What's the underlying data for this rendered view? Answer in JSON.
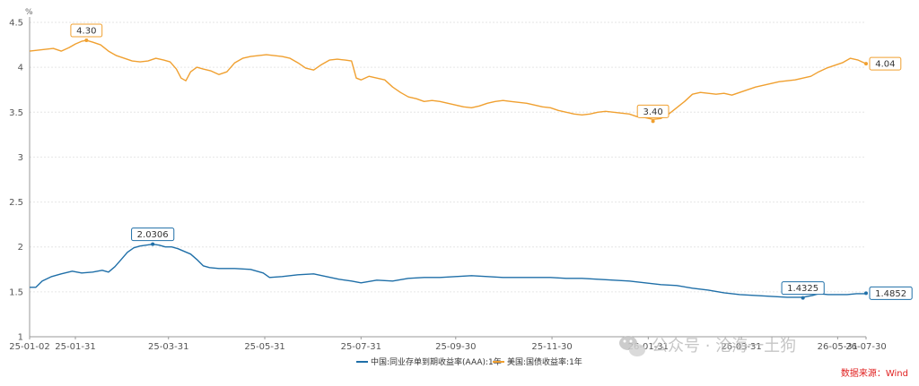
{
  "chart_data": {
    "type": "line",
    "title": "",
    "xlabel": "",
    "ylabel": "%",
    "ylim": [
      1,
      4.5
    ],
    "y_ticks": [
      "1",
      "1.5",
      "2",
      "2.5",
      "3",
      "3.5",
      "4",
      "4.5"
    ],
    "x_ticks": [
      "25-01-02",
      "25-01-31",
      "25-03-31",
      "25-05-31",
      "25-07-31",
      "25-09-30",
      "25-11-30",
      "26-01-31",
      "26-03-31",
      "26-05-31",
      "26-07-30"
    ],
    "grid": true,
    "legend_position": "bottom",
    "series": [
      {
        "name": "中国:同业存单到期收益率(AAA):1年",
        "color": "#1f6fa8",
        "values": [
          [
            0,
            1.55
          ],
          [
            4,
            1.55
          ],
          [
            8,
            1.62
          ],
          [
            14,
            1.67
          ],
          [
            20,
            1.7
          ],
          [
            27,
            1.73
          ],
          [
            33,
            1.71
          ],
          [
            40,
            1.72
          ],
          [
            46,
            1.74
          ],
          [
            50,
            1.72
          ],
          [
            54,
            1.78
          ],
          [
            58,
            1.86
          ],
          [
            62,
            1.94
          ],
          [
            66,
            1.99
          ],
          [
            70,
            2.01
          ],
          [
            74,
            2.02
          ],
          [
            78,
            2.03
          ],
          [
            82,
            2.02
          ],
          [
            86,
            2.0
          ],
          [
            90,
            2.0
          ],
          [
            94,
            1.98
          ],
          [
            98,
            1.95
          ],
          [
            102,
            1.92
          ],
          [
            106,
            1.86
          ],
          [
            110,
            1.79
          ],
          [
            114,
            1.77
          ],
          [
            120,
            1.76
          ],
          [
            130,
            1.76
          ],
          [
            140,
            1.75
          ],
          [
            148,
            1.71
          ],
          [
            152,
            1.66
          ],
          [
            160,
            1.67
          ],
          [
            170,
            1.69
          ],
          [
            180,
            1.7
          ],
          [
            188,
            1.67
          ],
          [
            196,
            1.64
          ],
          [
            204,
            1.62
          ],
          [
            210,
            1.6
          ],
          [
            220,
            1.63
          ],
          [
            230,
            1.62
          ],
          [
            240,
            1.65
          ],
          [
            250,
            1.66
          ],
          [
            260,
            1.66
          ],
          [
            270,
            1.67
          ],
          [
            280,
            1.68
          ],
          [
            290,
            1.67
          ],
          [
            300,
            1.66
          ],
          [
            310,
            1.66
          ],
          [
            320,
            1.66
          ],
          [
            330,
            1.66
          ],
          [
            340,
            1.65
          ],
          [
            350,
            1.65
          ],
          [
            360,
            1.64
          ],
          [
            370,
            1.63
          ],
          [
            380,
            1.62
          ],
          [
            390,
            1.6
          ],
          [
            400,
            1.58
          ],
          [
            410,
            1.57
          ],
          [
            420,
            1.54
          ],
          [
            430,
            1.52
          ],
          [
            440,
            1.49
          ],
          [
            450,
            1.47
          ],
          [
            460,
            1.46
          ],
          [
            470,
            1.45
          ],
          [
            480,
            1.44
          ],
          [
            490,
            1.44
          ],
          [
            496,
            1.46
          ],
          [
            500,
            1.48
          ],
          [
            506,
            1.47
          ],
          [
            512,
            1.47
          ],
          [
            518,
            1.47
          ],
          [
            524,
            1.48
          ],
          [
            530,
            1.48
          ]
        ]
      },
      {
        "name": "美国:国债收益率:1年",
        "color": "#f0a030",
        "values": [
          [
            0,
            4.18
          ],
          [
            5,
            4.19
          ],
          [
            10,
            4.2
          ],
          [
            15,
            4.21
          ],
          [
            20,
            4.18
          ],
          [
            25,
            4.22
          ],
          [
            29,
            4.26
          ],
          [
            33,
            4.29
          ],
          [
            36,
            4.3
          ],
          [
            40,
            4.28
          ],
          [
            45,
            4.25
          ],
          [
            50,
            4.18
          ],
          [
            55,
            4.13
          ],
          [
            60,
            4.1
          ],
          [
            65,
            4.07
          ],
          [
            70,
            4.06
          ],
          [
            75,
            4.07
          ],
          [
            80,
            4.1
          ],
          [
            85,
            4.08
          ],
          [
            89,
            4.06
          ],
          [
            93,
            3.98
          ],
          [
            96,
            3.88
          ],
          [
            99,
            3.85
          ],
          [
            102,
            3.95
          ],
          [
            106,
            4.0
          ],
          [
            110,
            3.98
          ],
          [
            115,
            3.96
          ],
          [
            120,
            3.92
          ],
          [
            125,
            3.95
          ],
          [
            130,
            4.05
          ],
          [
            135,
            4.1
          ],
          [
            140,
            4.12
          ],
          [
            145,
            4.13
          ],
          [
            150,
            4.14
          ],
          [
            155,
            4.13
          ],
          [
            160,
            4.12
          ],
          [
            165,
            4.1
          ],
          [
            170,
            4.05
          ],
          [
            175,
            3.99
          ],
          [
            180,
            3.97
          ],
          [
            185,
            4.03
          ],
          [
            190,
            4.08
          ],
          [
            195,
            4.09
          ],
          [
            200,
            4.08
          ],
          [
            204,
            4.07
          ],
          [
            207,
            3.88
          ],
          [
            210,
            3.86
          ],
          [
            215,
            3.9
          ],
          [
            220,
            3.88
          ],
          [
            225,
            3.86
          ],
          [
            230,
            3.78
          ],
          [
            235,
            3.72
          ],
          [
            240,
            3.67
          ],
          [
            245,
            3.65
          ],
          [
            250,
            3.62
          ],
          [
            255,
            3.63
          ],
          [
            260,
            3.62
          ],
          [
            265,
            3.6
          ],
          [
            270,
            3.58
          ],
          [
            275,
            3.56
          ],
          [
            280,
            3.55
          ],
          [
            285,
            3.57
          ],
          [
            290,
            3.6
          ],
          [
            295,
            3.62
          ],
          [
            300,
            3.63
          ],
          [
            305,
            3.62
          ],
          [
            310,
            3.61
          ],
          [
            315,
            3.6
          ],
          [
            320,
            3.58
          ],
          [
            325,
            3.56
          ],
          [
            330,
            3.55
          ],
          [
            335,
            3.52
          ],
          [
            340,
            3.5
          ],
          [
            345,
            3.48
          ],
          [
            350,
            3.47
          ],
          [
            355,
            3.48
          ],
          [
            360,
            3.5
          ],
          [
            365,
            3.51
          ],
          [
            370,
            3.5
          ],
          [
            375,
            3.49
          ],
          [
            380,
            3.48
          ],
          [
            385,
            3.45
          ],
          [
            390,
            3.44
          ],
          [
            395,
            3.42
          ],
          [
            400,
            3.43
          ],
          [
            405,
            3.48
          ],
          [
            410,
            3.55
          ],
          [
            415,
            3.62
          ],
          [
            420,
            3.7
          ],
          [
            425,
            3.72
          ],
          [
            430,
            3.71
          ],
          [
            435,
            3.7
          ],
          [
            440,
            3.71
          ],
          [
            445,
            3.69
          ],
          [
            450,
            3.72
          ],
          [
            455,
            3.75
          ],
          [
            460,
            3.78
          ],
          [
            465,
            3.8
          ],
          [
            470,
            3.82
          ],
          [
            475,
            3.84
          ],
          [
            480,
            3.85
          ],
          [
            485,
            3.86
          ],
          [
            490,
            3.88
          ],
          [
            495,
            3.9
          ],
          [
            500,
            3.95
          ],
          [
            505,
            3.99
          ],
          [
            510,
            4.02
          ],
          [
            515,
            4.05
          ],
          [
            520,
            4.1
          ],
          [
            525,
            4.08
          ],
          [
            530,
            4.04
          ]
        ]
      }
    ],
    "annotations": [
      {
        "series": 1,
        "label": "4.30",
        "x": 36,
        "y": 4.3
      },
      {
        "series": 1,
        "label": "3.40",
        "x": 395,
        "y": 3.4
      },
      {
        "series": 1,
        "label": "4.04",
        "x": 530,
        "y": 4.04
      },
      {
        "series": 0,
        "label": "2.0306",
        "x": 78,
        "y": 2.0306
      },
      {
        "series": 0,
        "label": "1.4325",
        "x": 490,
        "y": 1.4325
      },
      {
        "series": 0,
        "label": "1.4852",
        "x": 530,
        "y": 1.4852
      }
    ]
  },
  "source": "数据来源：Wind",
  "watermark": "公众号 · 沧海一土狗"
}
